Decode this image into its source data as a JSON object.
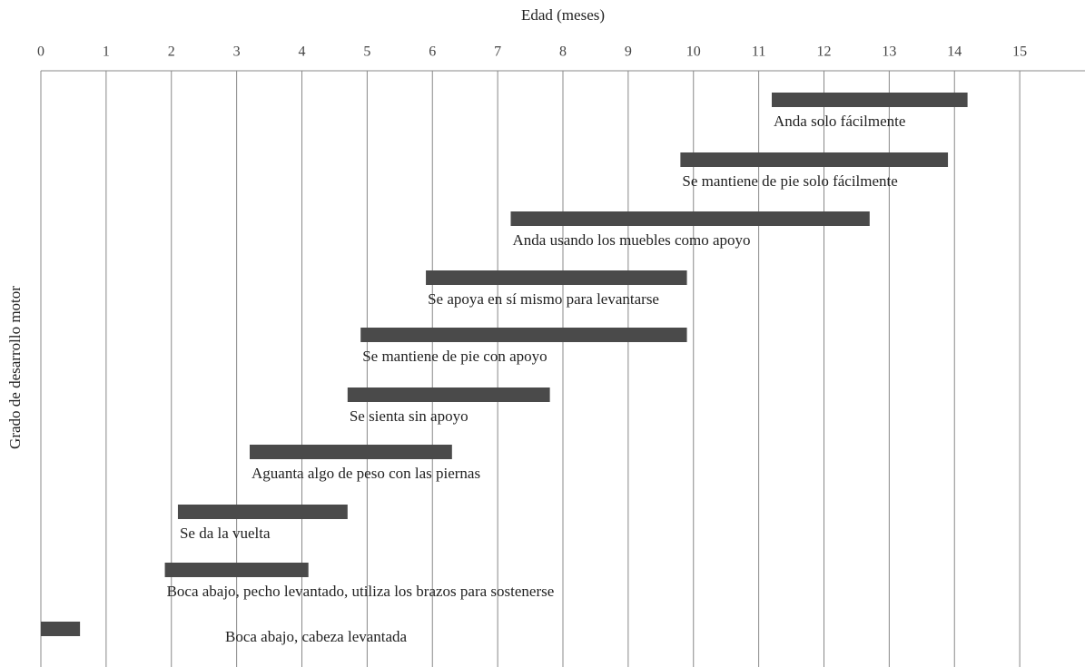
{
  "chart_data": {
    "type": "range-bar",
    "title": "Edad (meses)",
    "y_label": "Grado de desarrollo motor",
    "categories": [
      "Anda solo fácilmente",
      "Se mantiene de pie solo fácilmente",
      "Anda usando los muebles como apoyo",
      "Se apoya en sí mismo para levantarse",
      "Se mantiene de pie con apoyo",
      "Se sienta sin apoyo",
      "Aguanta algo de peso con las piernas",
      "Se da la vuelta",
      "Boca abajo, pecho levantado, utiliza los brazos para sostenerse",
      "Boca abajo, cabeza levantada"
    ],
    "starts": [
      11.2,
      9.8,
      7.2,
      5.9,
      4.9,
      4.7,
      3.2,
      2.1,
      1.9,
      0
    ],
    "ends": [
      14.2,
      13.9,
      12.7,
      9.9,
      9.9,
      7.8,
      6.3,
      4.7,
      4.1,
      0.6
    ],
    "color": "#4a4a4a",
    "xlim": [
      0,
      16
    ],
    "xticks": [
      0,
      1,
      2,
      3,
      4,
      5,
      6,
      7,
      8,
      9,
      10,
      11,
      12,
      13,
      14,
      15
    ],
    "grid": true
  }
}
